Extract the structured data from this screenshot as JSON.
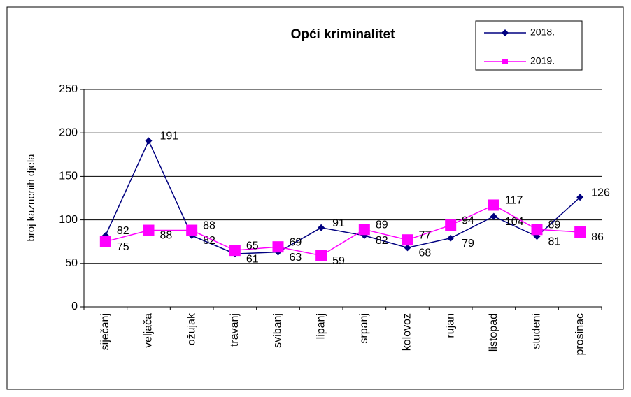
{
  "chart_data": {
    "type": "line",
    "title": "Opći kriminalitet",
    "ylabel": "broj kaznenih djela",
    "categories": [
      "siječanj",
      "veljača",
      "ožujak",
      "travanj",
      "svibanj",
      "lipanj",
      "srpanj",
      "kolovoz",
      "rujan",
      "listopad",
      "studeni",
      "prosinac"
    ],
    "series": [
      {
        "name": "2018.",
        "color": "#000080",
        "marker": "diamond",
        "values": [
          82,
          191,
          82,
          61,
          63,
          91,
          82,
          68,
          79,
          104,
          81,
          126
        ]
      },
      {
        "name": "2019.",
        "color": "#ff00ff",
        "marker": "square",
        "values": [
          75,
          88,
          88,
          65,
          69,
          59,
          89,
          77,
          94,
          117,
          89,
          86
        ]
      }
    ],
    "ylim": [
      0,
      250
    ],
    "yticks": [
      0,
      50,
      100,
      150,
      200,
      250
    ],
    "grid": true,
    "legend": "top-right"
  }
}
